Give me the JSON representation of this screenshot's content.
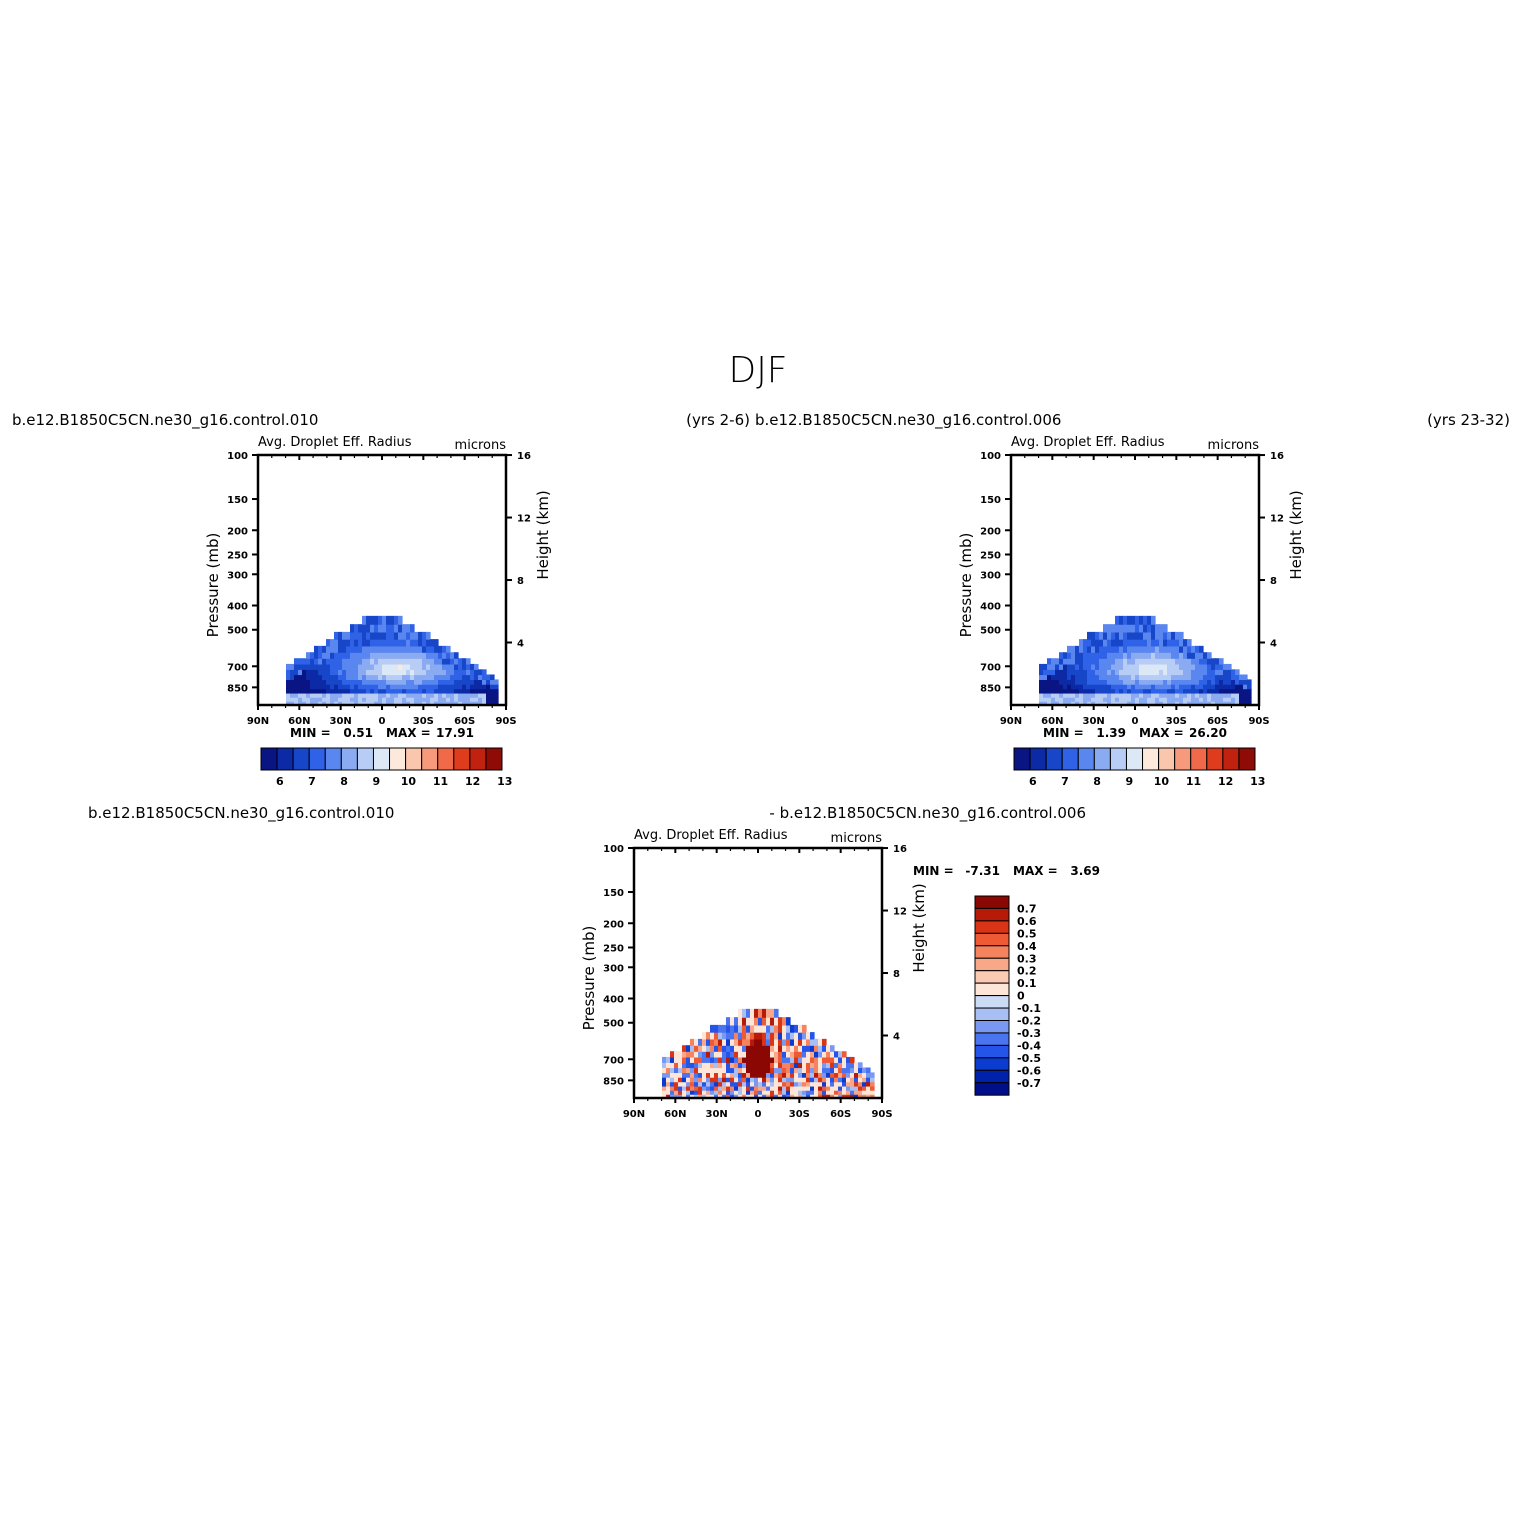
{
  "figure": {
    "title": "DJF"
  },
  "colors": {
    "abs_palette": [
      "#0a1584",
      "#0d2aa6",
      "#1747c8",
      "#2f62e6",
      "#5a86ef",
      "#8aaaf2",
      "#b8cdf5",
      "#dde8f7",
      "#fde8dc",
      "#fbc6ae",
      "#f79a7c",
      "#f06a4a",
      "#de3c1c",
      "#c0220f",
      "#8e0b06"
    ],
    "diff_palette": [
      "#000f88",
      "#0022aa",
      "#0c3bd0",
      "#2554e8",
      "#4a74f0",
      "#7898f2",
      "#a8bff4",
      "#cddcf6",
      "#fde6d8",
      "#fbcab2",
      "#f8a888",
      "#f5845e",
      "#ee5a34",
      "#da3416",
      "#b81a08",
      "#8a0703"
    ]
  },
  "chart_data": [
    {
      "type": "heatmap",
      "header_left": "b.e12.B1850C5CN.ne30_g16.control.010",
      "header_right": "(yrs 2-6)",
      "title": "Avg. Droplet Eff. Radius",
      "units": "microns",
      "ylabel": "Pressure (mb)",
      "ylabel_right": "Height (km)",
      "x_ticks": [
        "90N",
        "60N",
        "30N",
        "0",
        "30S",
        "60S",
        "90S"
      ],
      "y_ticks": [
        "100",
        "150",
        "200",
        "250",
        "300",
        "400",
        "500",
        "700",
        "850"
      ],
      "y_ticks_right": [
        "16",
        "12",
        "8",
        "4"
      ],
      "ylim": [
        1000,
        100
      ],
      "y_scale": "log",
      "min_label": "MIN =",
      "min_value": "0.51",
      "max_label": "MAX =",
      "max_value": "17.91",
      "colorbar_labels": [
        "6",
        "7",
        "8",
        "9",
        "10",
        "11",
        "12",
        "13"
      ],
      "colorbar_orientation": "horizontal"
    },
    {
      "type": "heatmap",
      "header_left": "b.e12.B1850C5CN.ne30_g16.control.006",
      "header_right": "(yrs 23-32)",
      "title": "Avg. Droplet Eff. Radius",
      "units": "microns",
      "ylabel": "Pressure (mb)",
      "ylabel_right": "Height (km)",
      "x_ticks": [
        "90N",
        "60N",
        "30N",
        "0",
        "30S",
        "60S",
        "90S"
      ],
      "y_ticks": [
        "100",
        "150",
        "200",
        "250",
        "300",
        "400",
        "500",
        "700",
        "850"
      ],
      "y_ticks_right": [
        "16",
        "12",
        "8",
        "4"
      ],
      "ylim": [
        1000,
        100
      ],
      "y_scale": "log",
      "min_label": "MIN =",
      "min_value": "1.39",
      "max_label": "MAX =",
      "max_value": "26.20",
      "colorbar_labels": [
        "6",
        "7",
        "8",
        "9",
        "10",
        "11",
        "12",
        "13"
      ],
      "colorbar_orientation": "horizontal"
    },
    {
      "type": "heatmap",
      "header_left": "b.e12.B1850C5CN.ne30_g16.control.010",
      "header_right": "- b.e12.B1850C5CN.ne30_g16.control.006",
      "title": "Avg. Droplet Eff. Radius",
      "units": "microns",
      "ylabel": "Pressure (mb)",
      "ylabel_right": "Height (km)",
      "x_ticks": [
        "90N",
        "60N",
        "30N",
        "0",
        "30S",
        "60S",
        "90S"
      ],
      "y_ticks": [
        "100",
        "150",
        "200",
        "250",
        "300",
        "400",
        "500",
        "700",
        "850"
      ],
      "y_ticks_right": [
        "16",
        "12",
        "8",
        "4"
      ],
      "ylim": [
        1000,
        100
      ],
      "y_scale": "log",
      "min_label": "MIN =",
      "min_value": "-7.31",
      "max_label": "MAX =",
      "max_value": "3.69",
      "colorbar_labels": [
        "0.7",
        "0.6",
        "0.5",
        "0.4",
        "0.3",
        "0.2",
        "0.1",
        "0",
        "-0.1",
        "-0.2",
        "-0.3",
        "-0.4",
        "-0.5",
        "-0.6",
        "-0.7"
      ],
      "colorbar_orientation": "vertical"
    }
  ]
}
